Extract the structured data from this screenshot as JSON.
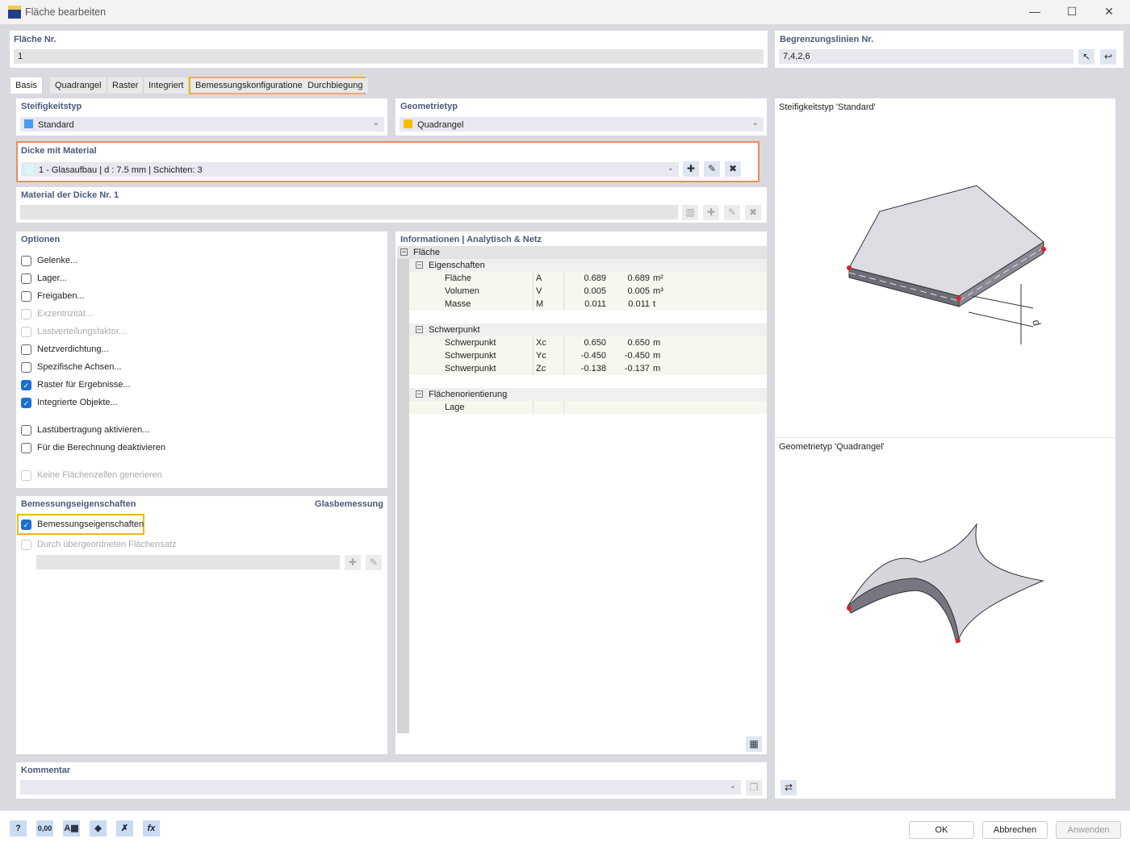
{
  "window": {
    "title": "Fläche bearbeiten",
    "icon": "surface-app-icon",
    "minimize": "—",
    "maximize": "☐",
    "close": "✕"
  },
  "header": {
    "flaeche_label": "Fläche Nr.",
    "flaeche_value": "1",
    "begrenz_label": "Begrenzungslinien Nr.",
    "begrenz_value": "7,4,2,6"
  },
  "tabs": [
    "Basis",
    "Quadrangel",
    "Raster",
    "Integriert",
    "Bemessungskonfigurationen",
    "Durchbiegung"
  ],
  "steifigkeit": {
    "label": "Steifigkeitstyp",
    "value": "Standard",
    "color": "#4a9cf0"
  },
  "geometrie": {
    "label": "Geometrietyp",
    "value": "Quadrangel",
    "color": "#f5c000"
  },
  "dicke": {
    "label": "Dicke mit Material",
    "value": "1 - Glasaufbau | d : 7.5 mm | Schichten: 3",
    "color": "#d4f8fb"
  },
  "material": {
    "label": "Material der Dicke Nr. 1",
    "value": ""
  },
  "optionen": {
    "label": "Optionen",
    "items": [
      {
        "label": "Gelenke...",
        "checked": false,
        "disabled": false
      },
      {
        "label": "Lager...",
        "checked": false,
        "disabled": false
      },
      {
        "label": "Freigaben...",
        "checked": false,
        "disabled": false
      },
      {
        "label": "Exzentrizität...",
        "checked": false,
        "disabled": true
      },
      {
        "label": "Lastverteilungsfaktor...",
        "checked": false,
        "disabled": true
      },
      {
        "label": "Netzverdichtung...",
        "checked": false,
        "disabled": false
      },
      {
        "label": "Spezifische Achsen...",
        "checked": false,
        "disabled": false
      },
      {
        "label": "Raster für Ergebnisse...",
        "checked": true,
        "disabled": false
      },
      {
        "label": "Integrierte Objekte...",
        "checked": true,
        "disabled": false
      },
      {
        "label": "Lastübertragung aktivieren...",
        "checked": false,
        "disabled": false
      },
      {
        "label": "Für die Berechnung deaktivieren",
        "checked": false,
        "disabled": false
      },
      {
        "label": "Keine Flächenzellen generieren",
        "checked": false,
        "disabled": true
      }
    ]
  },
  "bemessung": {
    "label": "Bemessungseigenschaften",
    "right_label": "Glasbemessung",
    "cb1": "Bemessungseigenschaften",
    "cb2": "Durch übergeordneten Flächensatz"
  },
  "info": {
    "label": "Informationen | Analytisch & Netz",
    "rows": [
      {
        "level": 0,
        "name": "Fläche",
        "sym": "",
        "v1": "",
        "v2": "",
        "unit": ""
      },
      {
        "level": 1,
        "name": "Eigenschaften",
        "sym": "",
        "v1": "",
        "v2": "",
        "unit": ""
      },
      {
        "level": 2,
        "name": "Fläche",
        "sym": "A",
        "v1": "0.689",
        "v2": "0.689",
        "unit": "m²"
      },
      {
        "level": 2,
        "name": "Volumen",
        "sym": "V",
        "v1": "0.005",
        "v2": "0.005",
        "unit": "m³"
      },
      {
        "level": 2,
        "name": "Masse",
        "sym": "M",
        "v1": "0.011",
        "v2": "0.011",
        "unit": "t"
      },
      {
        "level": -1,
        "name": "",
        "sym": "",
        "v1": "",
        "v2": "",
        "unit": ""
      },
      {
        "level": 1,
        "name": "Schwerpunkt",
        "sym": "",
        "v1": "",
        "v2": "",
        "unit": ""
      },
      {
        "level": 2,
        "name": "Schwerpunkt",
        "sym": "Xc",
        "v1": "0.650",
        "v2": "0.650",
        "unit": "m"
      },
      {
        "level": 2,
        "name": "Schwerpunkt",
        "sym": "Yc",
        "v1": "-0.450",
        "v2": "-0.450",
        "unit": "m"
      },
      {
        "level": 2,
        "name": "Schwerpunkt",
        "sym": "Zc",
        "v1": "-0.138",
        "v2": "-0.137",
        "unit": "m"
      },
      {
        "level": -1,
        "name": "",
        "sym": "",
        "v1": "",
        "v2": "",
        "unit": ""
      },
      {
        "level": 1,
        "name": "Flächenorientierung",
        "sym": "",
        "v1": "",
        "v2": "",
        "unit": ""
      },
      {
        "level": 2,
        "name": "Lage",
        "sym": "",
        "v1": "",
        "v2": "",
        "unit": ""
      }
    ]
  },
  "kommentar": {
    "label": "Kommentar",
    "value": ""
  },
  "preview": {
    "top_label": "Steifigkeitstyp 'Standard'",
    "bottom_label": "Geometrietyp 'Quadrangel'",
    "dim_label": "d"
  },
  "footer": {
    "ok": "OK",
    "cancel": "Abbrechen",
    "apply": "Anwenden",
    "zero_icon_text": "0,00",
    "fx_icon_text": "fx"
  }
}
